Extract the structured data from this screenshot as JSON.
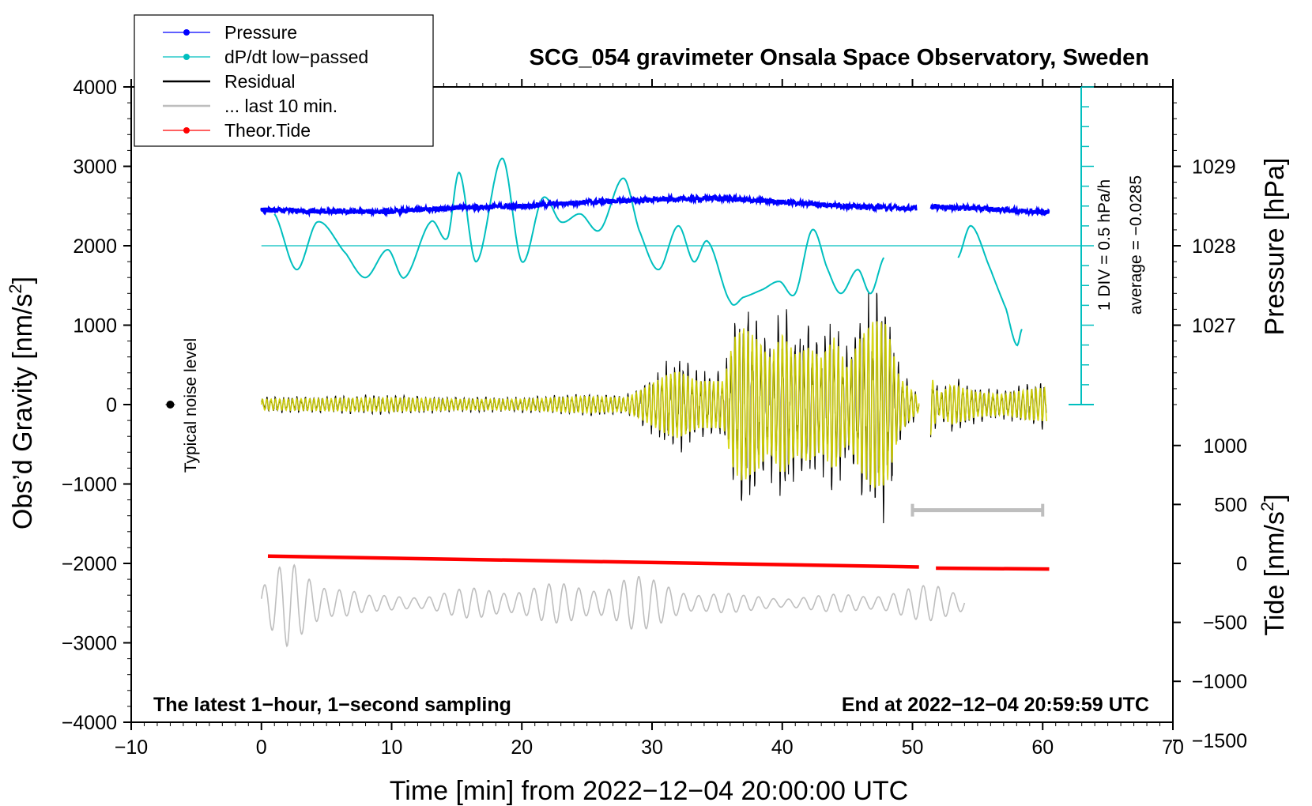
{
  "chart_data": {
    "type": "line",
    "title": "SCG_054 gravimeter Onsala Space Observatory, Sweden",
    "xlabel": "Time [min] from 2022−12−04 20:00:00 UTC",
    "ylabel_left": "Obs’d Gravity [nm/s",
    "ylabel_left_sup": "2",
    "ylabel_left_tail": "]",
    "ylabel_right_pressure": "Pressure [hPa]",
    "ylabel_right_tide": "Tide [nm/s",
    "ylabel_right_tide_sup": "2",
    "ylabel_right_tide_tail": "]",
    "xlim": [
      -10,
      70
    ],
    "ylim": [
      -4000,
      4000
    ],
    "x_ticks": [
      "−10",
      "0",
      "10",
      "20",
      "30",
      "40",
      "50",
      "60",
      "70"
    ],
    "x_tick_values": [
      -10,
      0,
      10,
      20,
      30,
      40,
      50,
      60,
      70
    ],
    "y_ticks": [
      "4000",
      "3000",
      "2000",
      "1000",
      "0",
      "−1000",
      "−2000",
      "−3000",
      "−4000"
    ],
    "y_tick_values": [
      4000,
      3000,
      2000,
      1000,
      0,
      -1000,
      -2000,
      -3000,
      -4000
    ],
    "pressure_ticks": [
      "1029",
      "1028",
      "1027"
    ],
    "pressure_tick_values": [
      1029,
      1028,
      1027
    ],
    "pressure_mapping": {
      "hpa_ref": 1028,
      "gravity_ref": 2000,
      "gravity_per_hpa": 1000
    },
    "tide_ticks": [
      "1000",
      "500",
      "0",
      "−500",
      "−1000",
      "−1500"
    ],
    "tide_tick_values": [
      1000,
      500,
      0,
      -500,
      -1000,
      -1500
    ],
    "tide_mapping": {
      "tide_ref": 0,
      "gravity_ref": -2000,
      "gravity_per_unit": 1.485
    },
    "legend": {
      "position": "top-left",
      "items": [
        {
          "label": "Pressure",
          "color": "#0000ff",
          "marker": "dot"
        },
        {
          "label": "dP/dt low−passed",
          "color": "#00bfbf",
          "marker": "dot"
        },
        {
          "label": "Residual",
          "color": "#000000",
          "marker": "line"
        },
        {
          "label": "... last 10 min.",
          "color": "#bebebe",
          "marker": "line"
        },
        {
          "label": "Theor.Tide",
          "color": "#ff0000",
          "marker": "dot"
        }
      ]
    },
    "annotations": {
      "noise": "Typical noise level",
      "noise_point": {
        "x": -7,
        "y": 0
      },
      "dpdt_scale": "1 DIV = 0.5 hPa/h",
      "dpdt_average": "average = −0.0285",
      "bottom_left": "The latest 1−hour, 1−second sampling",
      "bottom_right": "End at 2022−12−04 20:59:59 UTC",
      "bar_10min": {
        "x_start": 50,
        "x_end": 60,
        "y": -1330
      }
    },
    "series": [
      {
        "name": "Pressure",
        "color": "#0000ff",
        "unit": "hPa",
        "x": [
          0,
          5,
          10,
          15,
          20,
          25,
          30,
          35,
          40,
          45,
          50,
          52,
          55,
          60.5
        ],
        "y": [
          1028.45,
          1028.43,
          1028.43,
          1028.48,
          1028.5,
          1028.55,
          1028.58,
          1028.6,
          1028.55,
          1028.5,
          1028.47,
          1028.49,
          1028.47,
          1028.42
        ]
      },
      {
        "name": "dP/dt low−passed",
        "color": "#00bfbf",
        "unit": "nm/s2",
        "x": [
          1,
          2.7,
          4.3,
          6.5,
          8,
          9.7,
          11,
          13,
          14.3,
          15.2,
          16.5,
          18.5,
          20,
          21.6,
          23,
          24.5,
          26,
          27.8,
          29,
          30.5,
          32,
          33.2,
          34.3,
          36,
          37,
          38.5,
          39.8,
          41,
          42.3,
          43.5,
          44.5,
          45.8,
          46.8,
          47.8,
          53.5,
          54.5,
          56,
          57.2,
          58,
          58.4
        ],
        "y": [
          2400,
          1700,
          2300,
          1900,
          1600,
          1950,
          1600,
          2300,
          2100,
          2920,
          1800,
          3100,
          1800,
          2600,
          2300,
          2400,
          2200,
          2850,
          2200,
          1700,
          2250,
          1800,
          2050,
          1300,
          1350,
          1450,
          1550,
          1400,
          2200,
          1700,
          1400,
          1700,
          1400,
          1850,
          1850,
          2250,
          1700,
          1200,
          750,
          950
        ]
      },
      {
        "name": "Residual",
        "color": "#000000",
        "unit": "nm/s2",
        "segments": [
          [
            0,
            50.5
          ],
          [
            51.4,
            60.3
          ]
        ],
        "envelope_x": [
          0,
          5,
          10,
          15,
          20,
          25,
          28,
          29,
          31,
          32,
          33.5,
          35.5,
          36.3,
          37,
          38.2,
          39,
          40,
          41,
          42,
          43,
          44,
          45,
          46,
          47,
          48,
          49,
          50.5,
          51.4,
          52,
          53,
          55,
          57,
          59,
          60.3
        ],
        "envelope_amp": [
          80,
          90,
          100,
          80,
          80,
          120,
          100,
          200,
          430,
          500,
          350,
          350,
          1000,
          1150,
          950,
          700,
          1050,
          750,
          850,
          700,
          1000,
          550,
          1000,
          1250,
          1200,
          400,
          100,
          450,
          150,
          300,
          180,
          150,
          230,
          250
        ]
      },
      {
        "name": "... last 10 min.",
        "color": "#bebebe",
        "unit": "nm/s2",
        "x_range": [
          0,
          54
        ],
        "offset": -2500,
        "envelope_x": [
          0,
          2,
          4,
          6,
          8,
          10,
          20,
          25,
          28,
          30,
          33,
          37,
          43,
          47,
          50,
          52,
          54
        ],
        "envelope_amp": [
          250,
          550,
          400,
          300,
          100,
          100,
          250,
          250,
          400,
          300,
          200,
          100,
          100,
          150,
          200,
          250,
          200
        ]
      },
      {
        "name": "Theor.Tide",
        "color": "#ff0000",
        "unit": "nm/s2",
        "segments": [
          [
            0.5,
            50.5
          ],
          [
            51.8,
            60.5
          ]
        ],
        "x": [
          0.5,
          50.5,
          51.8,
          60.5
        ],
        "y": [
          62,
          -30,
          -40,
          -48
        ]
      }
    ]
  }
}
